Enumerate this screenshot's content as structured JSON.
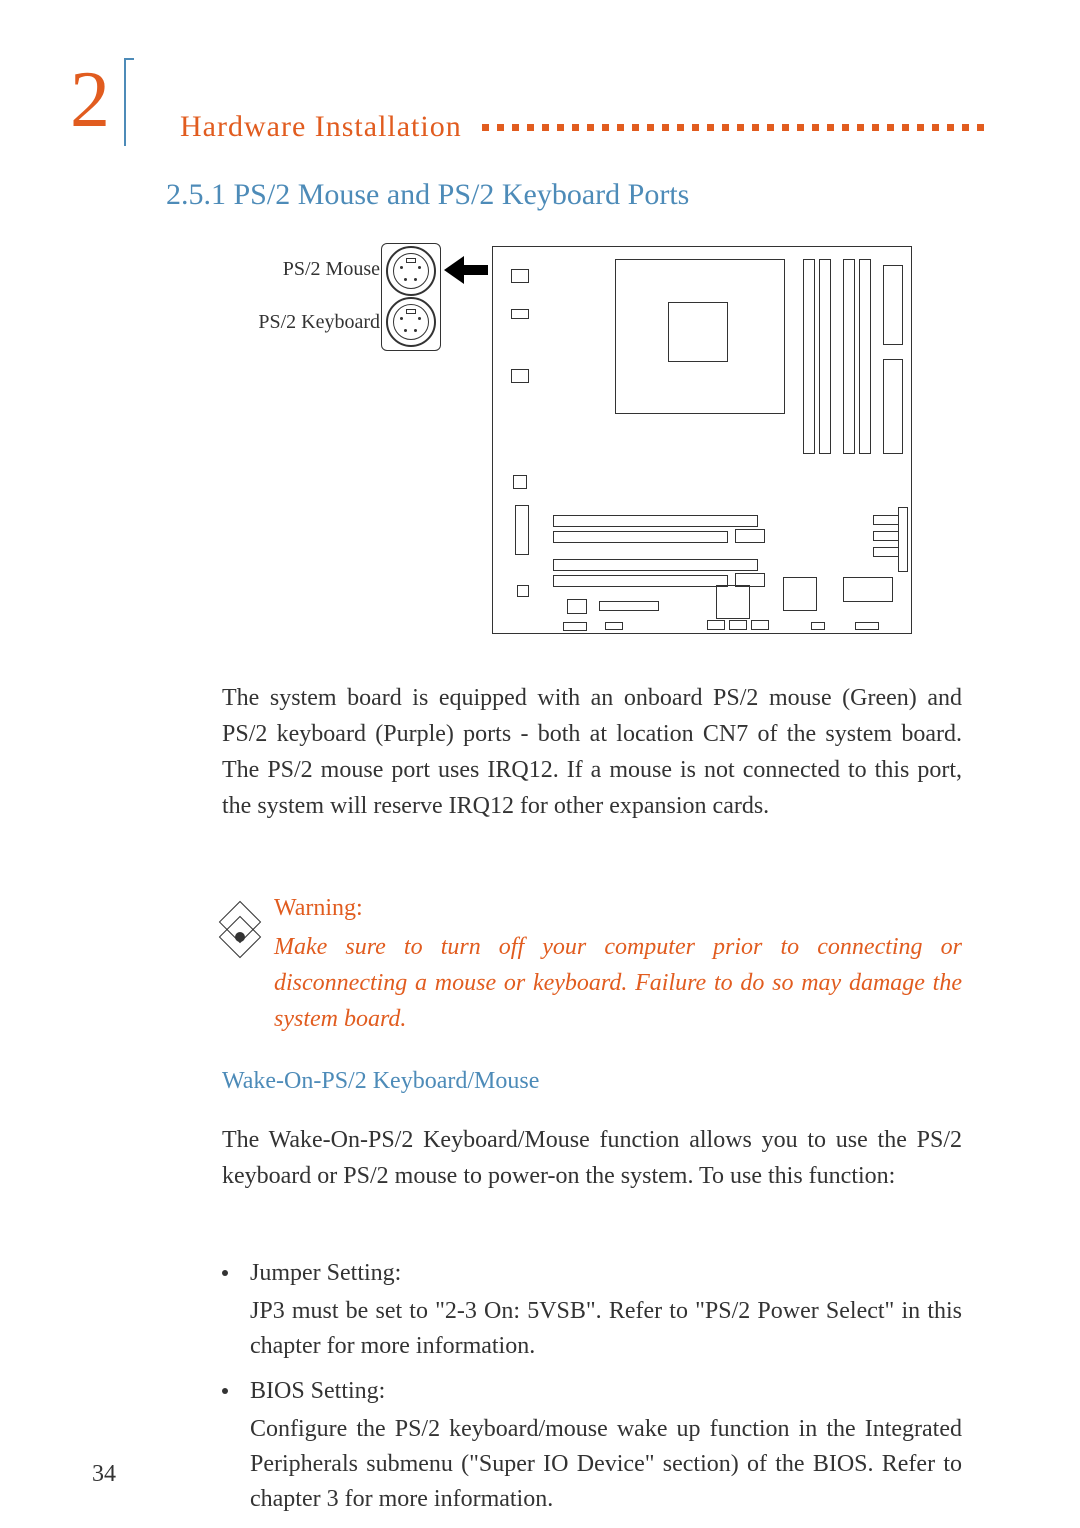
{
  "chapter": {
    "number": "2",
    "number_color": "#e15c1f",
    "header": "Hardware Installation",
    "header_color": "#e15c1f",
    "box_color": "#4d8bb8"
  },
  "dots": {
    "count": 34,
    "color": "#e15c1f",
    "size": 7
  },
  "subsection": {
    "title": "2.5.1 PS/2 Mouse and PS/2 Keyboard Ports",
    "color": "#4d8bb8"
  },
  "diagram": {
    "labels": {
      "mouse": "PS/2 Mouse",
      "keyboard": "PS/2 Keyboard"
    },
    "label_fontsize": 20,
    "label_color": "#333333",
    "arrow_color": "#000000",
    "border_color": "#333333"
  },
  "body": {
    "para1": "The system board is equipped with an onboard PS/2 mouse (Green) and PS/2 keyboard (Purple) ports - both at location CN7 of the system board. The PS/2 mouse port uses IRQ12. If a mouse is not connected to this port, the system will reserve IRQ12 for other expansion cards.",
    "text_color": "#333333",
    "fontsize": 24
  },
  "warning": {
    "title": "Warning:",
    "body": "Make sure to turn off your computer prior to connecting or disconnecting a mouse or keyboard. Failure to do so may damage the system board.",
    "color": "#e15c1f"
  },
  "wake": {
    "title": "Wake-On-PS/2 Keyboard/Mouse",
    "title_color": "#4d8bb8",
    "intro": "The Wake-On-PS/2 Keyboard/Mouse function allows you to use the PS/2 keyboard or PS/2 mouse to power-on the system. To use this function:"
  },
  "bullets": {
    "jumper": {
      "title": "Jumper Setting:",
      "body": "JP3 must be set to \"2-3 On: 5VSB\". Refer to \"PS/2 Power Select\" in this chapter for more information."
    },
    "bios": {
      "title": "BIOS Setting:",
      "body": "Configure the PS/2 keyboard/mouse wake up function in the Integrated Peripherals submenu (\"Super IO Device\" section) of the BIOS. Refer to chapter 3 for more information."
    }
  },
  "page_number": "34",
  "colors": {
    "orange": "#e15c1f",
    "blue": "#4d8bb8",
    "text": "#333333",
    "background": "#ffffff"
  }
}
